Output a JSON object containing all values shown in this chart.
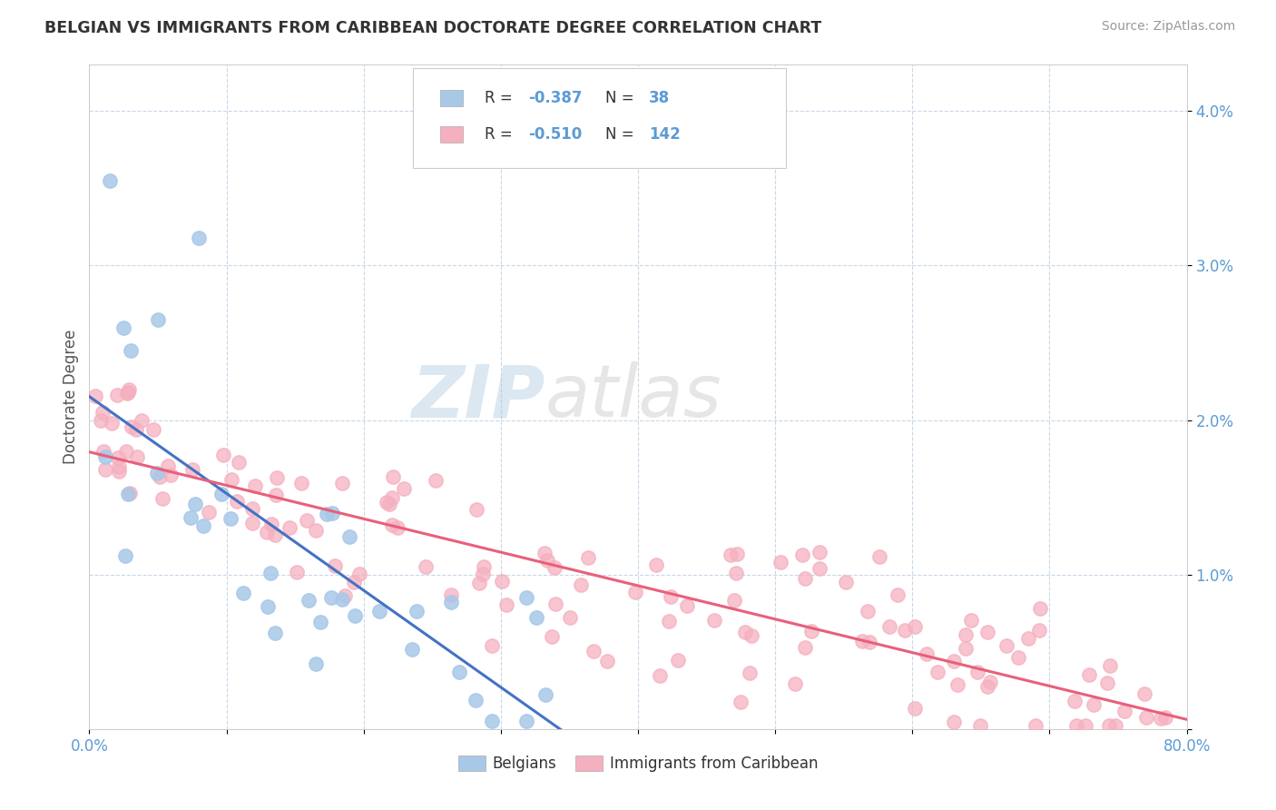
{
  "title": "BELGIAN VS IMMIGRANTS FROM CARIBBEAN DOCTORATE DEGREE CORRELATION CHART",
  "source": "Source: ZipAtlas.com",
  "ylabel": "Doctorate Degree",
  "xlim": [
    0.0,
    80.0
  ],
  "ylim": [
    0.0,
    4.3
  ],
  "belgian_R": -0.387,
  "belgian_N": 38,
  "caribbean_R": -0.51,
  "caribbean_N": 142,
  "belgian_color": "#a8c8e8",
  "caribbean_color": "#f5b0c0",
  "belgian_line_color": "#4472c4",
  "caribbean_line_color": "#e8607a",
  "background_color": "#ffffff",
  "grid_color": "#c8d8e8",
  "title_color": "#333333",
  "source_color": "#999999",
  "axis_tick_color": "#5b9bd5",
  "legend_text_R_color": "#333333",
  "legend_text_val_color": "#5b9bd5",
  "bottom_legend_text_color": "#333333",
  "watermark_zip_color": "#b0cce4",
  "watermark_atlas_color": "#c8c8c8"
}
